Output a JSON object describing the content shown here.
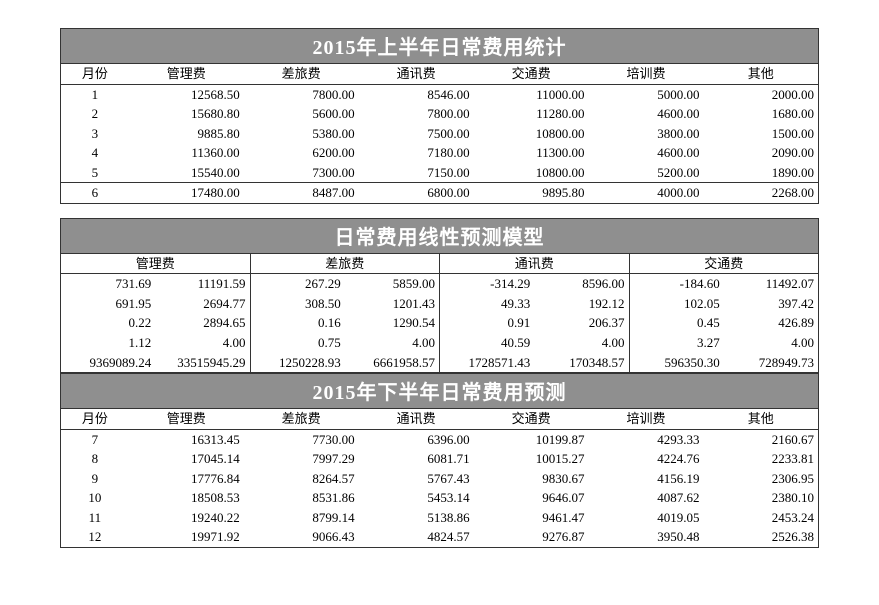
{
  "table1": {
    "title": "2015年上半年日常费用统计",
    "columns": [
      "月份",
      "管理费",
      "差旅费",
      "通讯费",
      "交通费",
      "培训费",
      "其他"
    ],
    "rows": [
      [
        "1",
        "12568.50",
        "7800.00",
        "8546.00",
        "11000.00",
        "5000.00",
        "2000.00"
      ],
      [
        "2",
        "15680.80",
        "5600.00",
        "7800.00",
        "11280.00",
        "4600.00",
        "1680.00"
      ],
      [
        "3",
        "9885.80",
        "5380.00",
        "7500.00",
        "10800.00",
        "3800.00",
        "1500.00"
      ],
      [
        "4",
        "11360.00",
        "6200.00",
        "7180.00",
        "11300.00",
        "4600.00",
        "2090.00"
      ],
      [
        "5",
        "15540.00",
        "7300.00",
        "7150.00",
        "10800.00",
        "5200.00",
        "1890.00"
      ],
      [
        "6",
        "17480.00",
        "8487.00",
        "6800.00",
        "9895.80",
        "4000.00",
        "2268.00"
      ]
    ]
  },
  "table2": {
    "title": "日常费用线性预测模型",
    "groups": [
      "管理费",
      "差旅费",
      "通讯费",
      "交通费"
    ],
    "rows": [
      [
        "731.69",
        "11191.59",
        "267.29",
        "5859.00",
        "-314.29",
        "8596.00",
        "-184.60",
        "11492.07"
      ],
      [
        "691.95",
        "2694.77",
        "308.50",
        "1201.43",
        "49.33",
        "192.12",
        "102.05",
        "397.42"
      ],
      [
        "0.22",
        "2894.65",
        "0.16",
        "1290.54",
        "0.91",
        "206.37",
        "0.45",
        "426.89"
      ],
      [
        "1.12",
        "4.00",
        "0.75",
        "4.00",
        "40.59",
        "4.00",
        "3.27",
        "4.00"
      ],
      [
        "9369089.24",
        "33515945.29",
        "1250228.93",
        "6661958.57",
        "1728571.43",
        "170348.57",
        "596350.30",
        "728949.73"
      ]
    ]
  },
  "table3": {
    "title": "2015年下半年日常费用预测",
    "columns": [
      "月份",
      "管理费",
      "差旅费",
      "通讯费",
      "交通费",
      "培训费",
      "其他"
    ],
    "rows": [
      [
        "7",
        "16313.45",
        "7730.00",
        "6396.00",
        "10199.87",
        "4293.33",
        "2160.67"
      ],
      [
        "8",
        "17045.14",
        "7997.29",
        "6081.71",
        "10015.27",
        "4224.76",
        "2233.81"
      ],
      [
        "9",
        "17776.84",
        "8264.57",
        "5767.43",
        "9830.67",
        "4156.19",
        "2306.95"
      ],
      [
        "10",
        "18508.53",
        "8531.86",
        "5453.14",
        "9646.07",
        "4087.62",
        "2380.10"
      ],
      [
        "11",
        "19240.22",
        "8799.14",
        "5138.86",
        "9461.47",
        "4019.05",
        "2453.24"
      ],
      [
        "12",
        "19971.92",
        "9066.43",
        "4824.57",
        "9276.87",
        "3950.48",
        "2526.38"
      ]
    ]
  },
  "colors": {
    "title_bg": "#8f8f8f",
    "title_fg": "#ffffff",
    "border": "#333333",
    "page_bg": "#ffffff"
  }
}
